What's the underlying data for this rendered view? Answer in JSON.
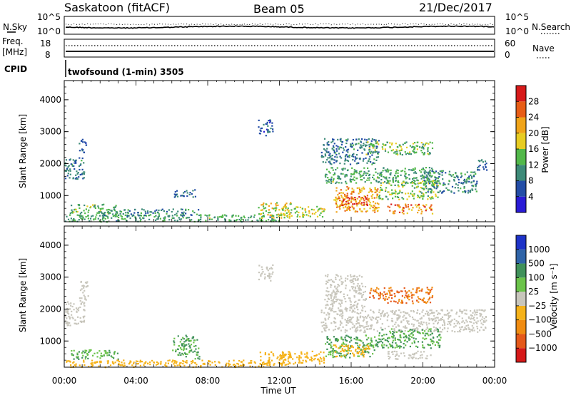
{
  "header": {
    "station": "Saskatoon (fitACF)",
    "beam": "Beam 05",
    "date": "21/Dec/2017"
  },
  "top_strip": {
    "left_label": "N.Sky",
    "right_label": "N.Search",
    "left_ticks": [
      "10^5",
      "10^0"
    ],
    "right_ticks": [
      "10^5",
      "10^0"
    ]
  },
  "freq_strip": {
    "left_label_1": "Freq.",
    "left_label_2": "[MHz]",
    "right_label": "Nave",
    "left_ticks": [
      "18",
      "8"
    ],
    "right_ticks": [
      "60",
      "0"
    ]
  },
  "cpid": {
    "label": "CPID",
    "mode": "twofsound (1-min) 3505"
  },
  "colors": {
    "power": [
      "#2a1bd6",
      "#234da6",
      "#3d8a78",
      "#52b84a",
      "#e7cc22",
      "#f0a419",
      "#e85d16",
      "#d71a1a"
    ],
    "velocity": [
      "#1e33c8",
      "#2f64a8",
      "#40915a",
      "#6bc34a",
      "#c8c6bc",
      "#f5b21a",
      "#f08c12",
      "#e5591a",
      "#d61919"
    ]
  },
  "chart_data": [
    {
      "type": "heatmap",
      "name": "Power",
      "ylabel": "Slant Range [km]",
      "xlabel": "",
      "ylim": [
        180,
        4600
      ],
      "yticks": [
        "1000",
        "2000",
        "3000",
        "4000"
      ],
      "colorbar": {
        "label": "Power [dB]",
        "range": [
          0,
          32
        ],
        "ticks": [
          "4",
          "8",
          "12",
          "16",
          "20",
          "24",
          "28"
        ]
      },
      "regions": [
        {
          "t0": 0.0,
          "t1": 1.1,
          "r0": 1500,
          "r1": 2200,
          "v": 9
        },
        {
          "t0": 0.8,
          "t1": 1.2,
          "r0": 2300,
          "r1": 2800,
          "v": 6
        },
        {
          "t0": 0.3,
          "t1": 3.0,
          "r0": 450,
          "r1": 750,
          "v": 13
        },
        {
          "t0": 0.0,
          "t1": 12.0,
          "r0": 200,
          "r1": 420,
          "v": 12
        },
        {
          "t0": 2.0,
          "t1": 7.5,
          "r0": 380,
          "r1": 600,
          "v": 10
        },
        {
          "t0": 6.0,
          "t1": 7.3,
          "r0": 950,
          "r1": 1200,
          "v": 8
        },
        {
          "t0": 10.8,
          "t1": 11.6,
          "r0": 2900,
          "r1": 3400,
          "v": 6
        },
        {
          "t0": 10.8,
          "t1": 12.6,
          "r0": 300,
          "r1": 800,
          "v": 18
        },
        {
          "t0": 12.0,
          "t1": 14.5,
          "r0": 350,
          "r1": 700,
          "v": 16
        },
        {
          "t0": 14.5,
          "t1": 20.5,
          "r0": 1400,
          "r1": 1900,
          "v": 12
        },
        {
          "t0": 15.0,
          "t1": 17.5,
          "r0": 500,
          "r1": 1300,
          "v": 22
        },
        {
          "t0": 15.3,
          "t1": 17.0,
          "r0": 650,
          "r1": 1000,
          "v": 28
        },
        {
          "t0": 14.3,
          "t1": 17.5,
          "r0": 2000,
          "r1": 2800,
          "v": 9
        },
        {
          "t0": 16.8,
          "t1": 20.5,
          "r0": 2300,
          "r1": 2700,
          "v": 14
        },
        {
          "t0": 17.5,
          "t1": 20.8,
          "r0": 900,
          "r1": 1500,
          "v": 15
        },
        {
          "t0": 18.0,
          "t1": 20.5,
          "r0": 450,
          "r1": 750,
          "v": 24
        },
        {
          "t0": 20.0,
          "t1": 23.0,
          "r0": 1100,
          "r1": 1800,
          "v": 10
        },
        {
          "t0": 23.0,
          "t1": 23.6,
          "r0": 1800,
          "r1": 2200,
          "v": 8
        }
      ]
    },
    {
      "type": "heatmap",
      "name": "Velocity",
      "ylabel": "Slant Range [km]",
      "xlabel": "Time UT",
      "ylim": [
        180,
        4600
      ],
      "yticks": [
        "1000",
        "2000",
        "3000",
        "4000"
      ],
      "xticks": [
        "00:00",
        "04:00",
        "08:00",
        "12:00",
        "16:00",
        "20:00",
        "00:00"
      ],
      "colorbar": {
        "label": "Velocity [m s⁻¹]",
        "ticks": [
          "1000",
          "500",
          "100",
          "25",
          "−25",
          "−100",
          "−500",
          "−1000"
        ]
      },
      "regions": [
        {
          "t0": 0.0,
          "t1": 1.1,
          "r0": 1500,
          "r1": 2300,
          "v": 0
        },
        {
          "t0": 0.8,
          "t1": 1.3,
          "r0": 2300,
          "r1": 2900,
          "v": 0
        },
        {
          "t0": 0.3,
          "t1": 3.0,
          "r0": 450,
          "r1": 750,
          "v": 60
        },
        {
          "t0": 0.0,
          "t1": 11.5,
          "r0": 200,
          "r1": 420,
          "v": -60
        },
        {
          "t0": 6.0,
          "t1": 7.5,
          "r0": 450,
          "r1": 1200,
          "v": 60
        },
        {
          "t0": 10.8,
          "t1": 11.6,
          "r0": 2900,
          "r1": 3400,
          "v": 0
        },
        {
          "t0": 10.8,
          "t1": 12.6,
          "r0": 250,
          "r1": 700,
          "v": -60
        },
        {
          "t0": 12.0,
          "t1": 14.5,
          "r0": 300,
          "r1": 700,
          "v": -60
        },
        {
          "t0": 14.3,
          "t1": 23.5,
          "r0": 1300,
          "r1": 2000,
          "v": 0
        },
        {
          "t0": 14.5,
          "t1": 17.5,
          "r0": 500,
          "r1": 1200,
          "v": 60
        },
        {
          "t0": 15.0,
          "t1": 17.0,
          "r0": 500,
          "r1": 900,
          "v": -60
        },
        {
          "t0": 17.0,
          "t1": 20.5,
          "r0": 2200,
          "r1": 2700,
          "v": -300
        },
        {
          "t0": 17.5,
          "t1": 21.0,
          "r0": 800,
          "r1": 1400,
          "v": 60
        },
        {
          "t0": 18.0,
          "t1": 20.5,
          "r0": 450,
          "r1": 700,
          "v": 0
        },
        {
          "t0": 14.5,
          "t1": 16.8,
          "r0": 2000,
          "r1": 3100,
          "v": 0
        }
      ]
    }
  ]
}
